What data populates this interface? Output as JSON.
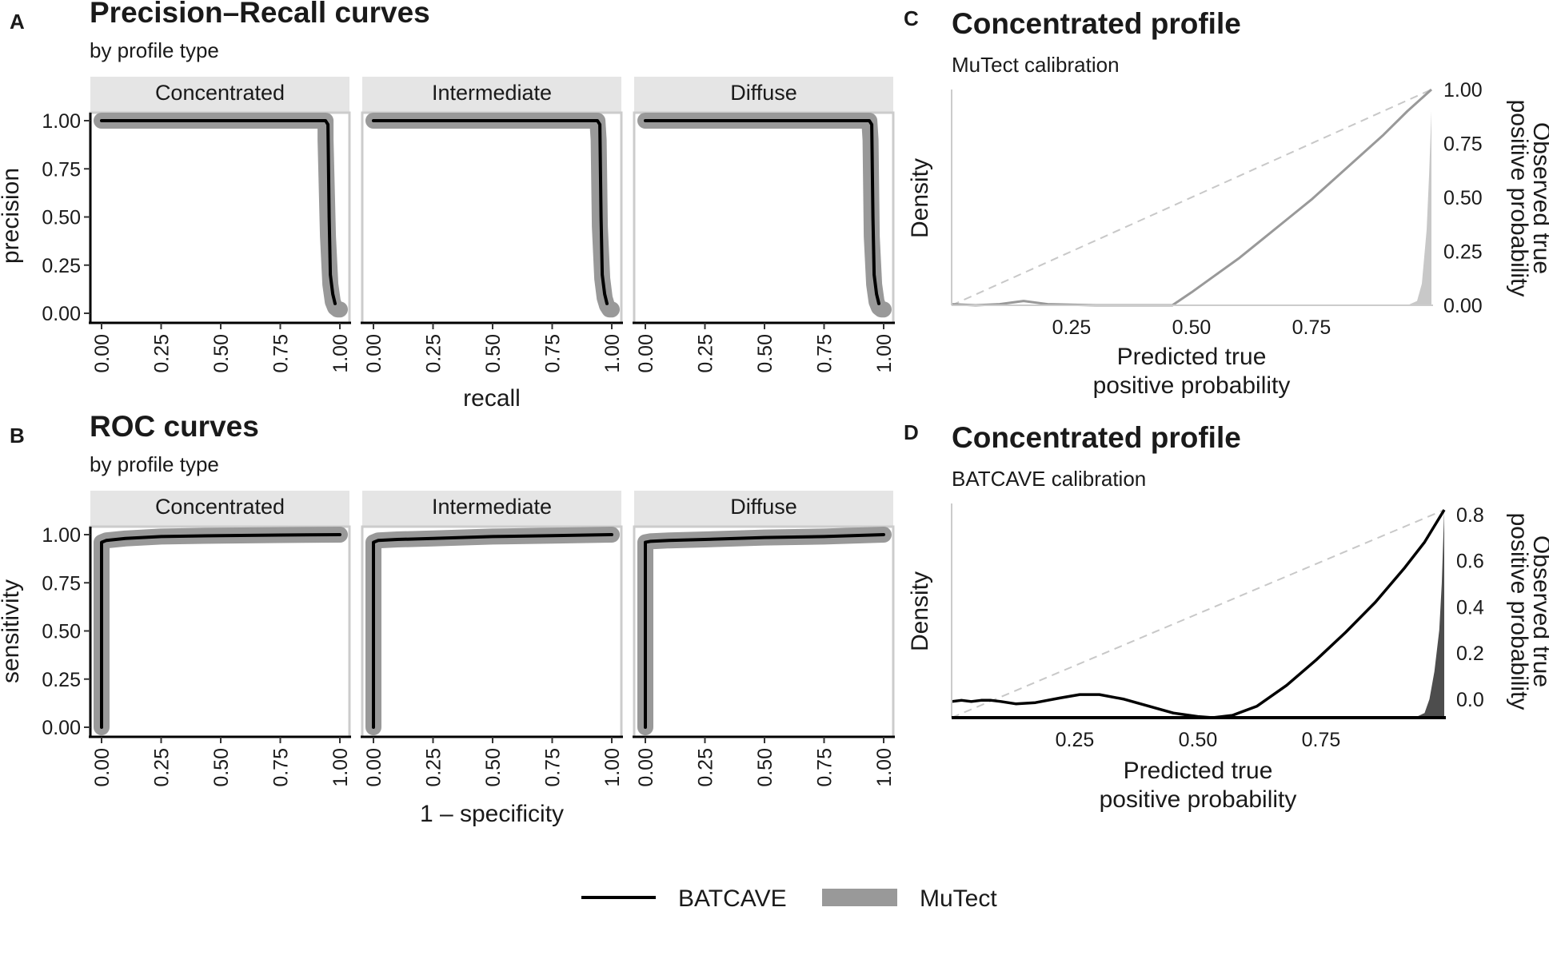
{
  "legend": {
    "entries": [
      {
        "label": "BATCAVE",
        "color": "#000000",
        "width": 4
      },
      {
        "label": "MuTect",
        "color": "#999999",
        "width": 22
      }
    ]
  },
  "chart_data": [
    {
      "panel": "A",
      "type": "line",
      "title": "Precision–Recall curves",
      "subtitle": "by profile type",
      "xlabel": "recall",
      "ylabel": "precision",
      "xlim": [
        0,
        1
      ],
      "ylim": [
        0,
        1
      ],
      "x_ticks": [
        "0.00",
        "0.25",
        "0.50",
        "0.75",
        "1.00"
      ],
      "y_ticks": [
        "0.00",
        "0.25",
        "0.50",
        "0.75",
        "1.00"
      ],
      "facets": [
        {
          "label": "Concentrated",
          "series": [
            {
              "name": "MuTect",
              "x": [
                0.0,
                0.94,
                0.94,
                0.95,
                0.96,
                0.97,
                0.98,
                0.99,
                1.0
              ],
              "y": [
                1.0,
                1.0,
                0.9,
                0.4,
                0.15,
                0.06,
                0.03,
                0.02,
                0.02
              ]
            },
            {
              "name": "BATCAVE",
              "x": [
                0.0,
                0.94,
                0.95,
                0.955,
                0.96,
                0.97,
                0.98
              ],
              "y": [
                1.0,
                1.0,
                0.98,
                0.5,
                0.2,
                0.1,
                0.05
              ]
            }
          ]
        },
        {
          "label": "Intermediate",
          "series": [
            {
              "name": "MuTect",
              "x": [
                0.0,
                0.94,
                0.945,
                0.95,
                0.96,
                0.97,
                0.98,
                0.99,
                1.0
              ],
              "y": [
                1.0,
                1.0,
                0.9,
                0.45,
                0.18,
                0.08,
                0.04,
                0.02,
                0.02
              ]
            },
            {
              "name": "BATCAVE",
              "x": [
                0.0,
                0.94,
                0.95,
                0.955,
                0.96,
                0.97,
                0.98
              ],
              "y": [
                1.0,
                1.0,
                0.98,
                0.5,
                0.2,
                0.1,
                0.05
              ]
            }
          ]
        },
        {
          "label": "Diffuse",
          "series": [
            {
              "name": "MuTect",
              "x": [
                0.0,
                0.94,
                0.945,
                0.95,
                0.96,
                0.97,
                0.98,
                0.99,
                1.0
              ],
              "y": [
                1.0,
                1.0,
                0.9,
                0.4,
                0.15,
                0.06,
                0.03,
                0.02,
                0.02
              ]
            },
            {
              "name": "BATCAVE",
              "x": [
                0.0,
                0.94,
                0.95,
                0.955,
                0.96,
                0.97,
                0.98
              ],
              "y": [
                1.0,
                1.0,
                0.98,
                0.5,
                0.2,
                0.1,
                0.05
              ]
            }
          ]
        }
      ]
    },
    {
      "panel": "B",
      "type": "line",
      "title": "ROC curves",
      "subtitle": "by profile type",
      "xlabel": "1 – specificity",
      "ylabel": "sensitivity",
      "xlim": [
        0,
        1
      ],
      "ylim": [
        0,
        1
      ],
      "x_ticks": [
        "0.00",
        "0.25",
        "0.50",
        "0.75",
        "1.00"
      ],
      "y_ticks": [
        "0.00",
        "0.25",
        "0.50",
        "0.75",
        "1.00"
      ],
      "facets": [
        {
          "label": "Concentrated",
          "series": [
            {
              "name": "MuTect",
              "x": [
                0.0,
                0.0,
                0.02,
                0.1,
                0.25,
                0.5,
                0.75,
                1.0
              ],
              "y": [
                0.0,
                0.96,
                0.97,
                0.98,
                0.99,
                0.995,
                0.998,
                1.0
              ]
            },
            {
              "name": "BATCAVE",
              "x": [
                0.0,
                0.0,
                0.02,
                0.1,
                0.25,
                0.5,
                0.75,
                1.0
              ],
              "y": [
                0.0,
                0.96,
                0.97,
                0.98,
                0.99,
                0.995,
                0.998,
                1.0
              ]
            }
          ]
        },
        {
          "label": "Intermediate",
          "series": [
            {
              "name": "MuTect",
              "x": [
                0.0,
                0.0,
                0.02,
                0.1,
                0.25,
                0.5,
                0.75,
                1.0
              ],
              "y": [
                0.0,
                0.96,
                0.97,
                0.975,
                0.98,
                0.99,
                0.995,
                1.0
              ]
            },
            {
              "name": "BATCAVE",
              "x": [
                0.0,
                0.0,
                0.02,
                0.1,
                0.25,
                0.5,
                0.75,
                1.0
              ],
              "y": [
                0.0,
                0.96,
                0.97,
                0.975,
                0.98,
                0.99,
                0.995,
                1.0
              ]
            }
          ]
        },
        {
          "label": "Diffuse",
          "series": [
            {
              "name": "MuTect",
              "x": [
                0.0,
                0.0,
                0.02,
                0.1,
                0.25,
                0.5,
                0.75,
                1.0
              ],
              "y": [
                0.0,
                0.96,
                0.965,
                0.97,
                0.975,
                0.985,
                0.99,
                1.0
              ]
            },
            {
              "name": "BATCAVE",
              "x": [
                0.0,
                0.0,
                0.02,
                0.1,
                0.25,
                0.5,
                0.75,
                1.0
              ],
              "y": [
                0.0,
                0.96,
                0.965,
                0.97,
                0.975,
                0.985,
                0.99,
                1.0
              ]
            }
          ]
        }
      ]
    },
    {
      "panel": "C",
      "type": "line",
      "title": "Concentrated profile",
      "subtitle": "MuTect calibration",
      "xlabel": "Predicted true positive probability",
      "ylabel_left": "Density",
      "ylabel_right": "Observed true positive probability",
      "xlim": [
        0,
        1
      ],
      "ylim": [
        0,
        1
      ],
      "x_ticks": [
        "0.25",
        "0.50",
        "0.75"
      ],
      "y_ticks": [
        "0.00",
        "0.25",
        "0.50",
        "0.75",
        "1.00"
      ],
      "reference_line": {
        "x": [
          0,
          1
        ],
        "y": [
          0,
          1
        ],
        "style": "dashed"
      },
      "series": [
        {
          "name": "MuTect",
          "x": [
            0.0,
            0.05,
            0.1,
            0.15,
            0.2,
            0.3,
            0.4,
            0.46,
            0.5,
            0.55,
            0.6,
            0.65,
            0.7,
            0.75,
            0.8,
            0.85,
            0.9,
            0.95,
            1.0
          ],
          "y": [
            0.005,
            0.0,
            0.005,
            0.02,
            0.005,
            0.0,
            0.0,
            0.0,
            0.06,
            0.14,
            0.22,
            0.31,
            0.4,
            0.49,
            0.59,
            0.69,
            0.79,
            0.9,
            1.0
          ]
        }
      ],
      "density": {
        "x": [
          0.95,
          0.97,
          0.98,
          0.99,
          0.995,
          1.0
        ],
        "y": [
          0.0,
          0.02,
          0.1,
          0.35,
          0.6,
          0.9
        ]
      }
    },
    {
      "panel": "D",
      "type": "line",
      "title": "Concentrated profile",
      "subtitle": "BATCAVE calibration",
      "xlabel": "Predicted true positive probability",
      "ylabel_left": "Density",
      "ylabel_right": "Observed true positive probability",
      "xlim": [
        0,
        1
      ],
      "ylim": [
        -0.08,
        0.82
      ],
      "x_ticks": [
        "0.25",
        "0.50",
        "0.75"
      ],
      "y_ticks": [
        "0.0",
        "0.2",
        "0.4",
        "0.6",
        "0.8"
      ],
      "reference_line": {
        "x": [
          0,
          1
        ],
        "y": [
          -0.08,
          0.82
        ],
        "style": "dashed"
      },
      "series": [
        {
          "name": "BATCAVE",
          "x": [
            0.0,
            0.02,
            0.04,
            0.06,
            0.08,
            0.1,
            0.13,
            0.17,
            0.22,
            0.26,
            0.3,
            0.35,
            0.4,
            0.45,
            0.5,
            0.53,
            0.57,
            0.62,
            0.68,
            0.74,
            0.8,
            0.86,
            0.92,
            0.96,
            1.0
          ],
          "y": [
            -0.01,
            -0.005,
            -0.01,
            -0.005,
            -0.005,
            -0.01,
            -0.02,
            -0.015,
            0.005,
            0.02,
            0.02,
            0.0,
            -0.03,
            -0.06,
            -0.075,
            -0.08,
            -0.07,
            -0.03,
            0.06,
            0.17,
            0.29,
            0.42,
            0.57,
            0.68,
            0.82
          ]
        }
      ],
      "density": {
        "x": [
          0.94,
          0.96,
          0.97,
          0.98,
          0.99,
          0.995,
          1.0
        ],
        "y": [
          -0.08,
          -0.06,
          0.0,
          0.12,
          0.3,
          0.5,
          0.82
        ]
      }
    }
  ]
}
